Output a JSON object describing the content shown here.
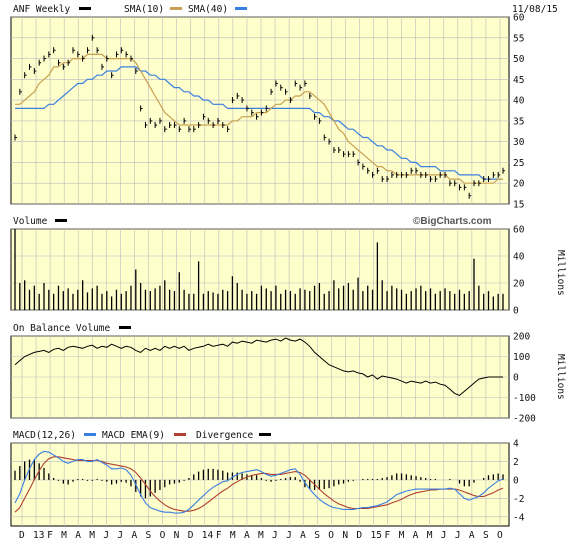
{
  "header": {
    "symbol_label": "ANF Weekly",
    "sma10_label": "SMA(10)",
    "sma40_label": "SMA(40)",
    "date": "11/08/15"
  },
  "colors": {
    "panel_bg": "#FFFFCC",
    "grid": "#BBBBBB",
    "price": "#000000",
    "sma10": "#C8A050",
    "sma40": "#3A7FE0",
    "macd": "#3A7FE0",
    "macd_ema": "#B04030",
    "divergence": "#000000",
    "volume": "#000000",
    "obv": "#000000"
  },
  "watermark": "©BigCharts.com",
  "x_ticks": [
    "D",
    "13",
    "F",
    "M",
    "A",
    "M",
    "J",
    "J",
    "A",
    "S",
    "O",
    "N",
    "D",
    "14",
    "F",
    "M",
    "A",
    "M",
    "J",
    "J",
    "A",
    "S",
    "O",
    "N",
    "D",
    "15",
    "F",
    "M",
    "A",
    "M",
    "J",
    "J",
    "A",
    "S",
    "O"
  ],
  "panels": {
    "price": {
      "y_ticks": [
        "60",
        "55",
        "50",
        "45",
        "40",
        "35",
        "30",
        "25",
        "20",
        "15"
      ]
    },
    "volume": {
      "label": "Volume",
      "unit": "Millions",
      "y_ticks": [
        "60",
        "40",
        "20",
        "0"
      ]
    },
    "obv": {
      "label": "On Balance Volume",
      "unit": "Millions",
      "y_ticks": [
        "200",
        "100",
        "0",
        "-100",
        "-200"
      ]
    },
    "macd": {
      "label": "MACD(12,26)",
      "ema_label": "MACD EMA(9)",
      "div_label": "Divergence",
      "y_ticks": [
        "4",
        "2",
        "0",
        "-2",
        "-4"
      ]
    }
  },
  "chart_data": [
    {
      "type": "line",
      "title": "ANF Weekly",
      "series": [
        {
          "name": "ANF Weekly",
          "values": [
            31,
            42,
            46,
            48,
            47,
            49,
            50,
            51,
            52,
            49,
            48,
            49,
            52,
            51,
            50,
            52,
            55,
            52,
            48,
            50,
            46,
            51,
            52,
            51,
            50,
            47,
            38,
            34,
            35,
            34,
            35,
            33,
            34,
            34,
            33,
            35,
            33,
            33,
            34,
            36,
            35,
            34,
            35,
            34,
            33,
            40,
            41,
            40,
            38,
            37,
            36,
            37,
            38,
            42,
            44,
            43,
            42,
            40,
            44,
            43,
            44,
            41,
            36,
            35,
            31,
            30,
            28,
            28,
            27,
            27,
            27,
            25,
            24,
            23,
            22,
            23,
            21,
            21,
            22,
            22,
            22,
            22,
            23,
            23,
            22,
            22,
            21,
            21,
            22,
            22,
            20,
            20,
            19,
            19,
            17,
            20,
            20,
            21,
            21,
            22,
            22,
            23
          ]
        },
        {
          "name": "SMA(10)",
          "values": [
            39,
            39,
            40,
            41,
            42,
            44,
            45,
            46,
            48,
            48,
            49,
            49,
            50,
            50,
            50,
            51,
            51,
            51,
            51,
            50,
            50,
            50,
            50,
            50,
            50,
            49,
            47,
            45,
            43,
            41,
            39,
            37,
            36,
            35,
            34,
            34,
            34,
            34,
            34,
            34,
            34,
            34,
            34,
            34,
            34,
            35,
            35,
            36,
            36,
            36,
            37,
            37,
            37,
            38,
            39,
            39,
            40,
            40,
            41,
            41,
            42,
            42,
            41,
            40,
            39,
            37,
            35,
            33,
            32,
            30,
            29,
            28,
            27,
            26,
            25,
            24,
            24,
            23,
            23,
            22,
            22,
            22,
            22,
            22,
            22,
            22,
            22,
            22,
            22,
            22,
            21,
            21,
            21,
            20,
            20,
            20,
            20,
            20,
            20,
            20,
            21,
            21
          ]
        },
        {
          "name": "SMA(40)",
          "values": [
            38,
            38,
            38,
            38,
            38,
            38,
            38,
            39,
            39,
            40,
            41,
            42,
            43,
            44,
            44,
            45,
            45,
            46,
            46,
            47,
            47,
            47,
            48,
            48,
            48,
            48,
            47,
            47,
            46,
            46,
            45,
            45,
            44,
            43,
            43,
            42,
            42,
            41,
            41,
            40,
            40,
            39,
            39,
            39,
            38,
            38,
            38,
            38,
            38,
            38,
            38,
            38,
            38,
            38,
            38,
            38,
            38,
            38,
            38,
            38,
            38,
            38,
            37,
            37,
            36,
            36,
            35,
            35,
            34,
            33,
            33,
            32,
            31,
            31,
            30,
            29,
            29,
            28,
            28,
            27,
            26,
            26,
            25,
            25,
            24,
            24,
            24,
            24,
            23,
            23,
            23,
            23,
            22,
            22,
            22,
            22,
            22,
            21,
            21,
            21,
            21,
            21
          ]
        }
      ],
      "ylim": [
        15,
        60
      ]
    },
    {
      "type": "bar",
      "title": "Volume",
      "ylabel": "Millions",
      "values": [
        60,
        20,
        22,
        15,
        18,
        12,
        20,
        15,
        12,
        18,
        14,
        16,
        12,
        15,
        22,
        13,
        16,
        18,
        12,
        14,
        10,
        15,
        12,
        14,
        18,
        30,
        20,
        15,
        14,
        16,
        18,
        22,
        15,
        14,
        28,
        15,
        12,
        12,
        36,
        12,
        14,
        13,
        12,
        15,
        14,
        25,
        20,
        15,
        12,
        14,
        12,
        18,
        16,
        14,
        18,
        12,
        15,
        14,
        12,
        16,
        15,
        14,
        18,
        20,
        12,
        14,
        22,
        16,
        18,
        20,
        15,
        24,
        14,
        18,
        15,
        50,
        22,
        14,
        18,
        16,
        15,
        12,
        14,
        16,
        18,
        14,
        16,
        12,
        14,
        16,
        14,
        12,
        15,
        12,
        14,
        38,
        18,
        12,
        14,
        10,
        12,
        12
      ],
      "ylim": [
        0,
        60
      ]
    },
    {
      "type": "line",
      "title": "On Balance Volume",
      "ylabel": "Millions",
      "values": [
        60,
        80,
        100,
        110,
        120,
        125,
        130,
        120,
        135,
        140,
        130,
        145,
        150,
        145,
        140,
        150,
        155,
        140,
        150,
        145,
        160,
        150,
        140,
        150,
        145,
        130,
        120,
        140,
        130,
        140,
        130,
        150,
        140,
        150,
        140,
        150,
        130,
        140,
        145,
        150,
        160,
        150,
        155,
        160,
        150,
        170,
        165,
        175,
        170,
        165,
        180,
        175,
        170,
        180,
        185,
        175,
        190,
        180,
        175,
        185,
        170,
        150,
        120,
        100,
        80,
        60,
        50,
        40,
        30,
        25,
        30,
        20,
        15,
        0,
        10,
        -10,
        5,
        0,
        -5,
        -10,
        -20,
        -30,
        -20,
        -25,
        -30,
        -20,
        -30,
        -25,
        -35,
        -40,
        -60,
        -80,
        -90,
        -70,
        -50,
        -30,
        -10,
        -5,
        0,
        0,
        0,
        0
      ],
      "ylim": [
        -200,
        200
      ]
    },
    {
      "type": "line",
      "title": "MACD(12,26)",
      "series": [
        {
          "name": "MACD(12,26)",
          "values": [
            -2.5,
            -1.5,
            0,
            1.2,
            2.2,
            2.8,
            3.1,
            3.0,
            2.7,
            2.4,
            2.0,
            1.8,
            2.0,
            2.2,
            2.2,
            2.0,
            2.0,
            2.2,
            1.9,
            1.6,
            1.2,
            1.2,
            1.3,
            1.1,
            0.5,
            -0.5,
            -1.6,
            -2.5,
            -3.0,
            -3.2,
            -3.4,
            -3.5,
            -3.5,
            -3.6,
            -3.6,
            -3.5,
            -3.2,
            -2.7,
            -2.2,
            -1.7,
            -1.2,
            -0.8,
            -0.5,
            -0.2,
            -0.1,
            0.3,
            0.6,
            0.8,
            0.9,
            1.0,
            1.1,
            0.9,
            0.6,
            0.4,
            0.5,
            0.7,
            0.9,
            1.1,
            1.2,
            0.6,
            -0.3,
            -1.0,
            -1.6,
            -2.1,
            -2.5,
            -2.8,
            -3.0,
            -3.1,
            -3.2,
            -3.2,
            -3.2,
            -3.1,
            -3.0,
            -3.0,
            -2.9,
            -2.8,
            -2.6,
            -2.4,
            -2.0,
            -1.6,
            -1.4,
            -1.2,
            -1.1,
            -1.0,
            -1.0,
            -1.0,
            -1.0,
            -1.0,
            -1.0,
            -1.0,
            -0.9,
            -1.0,
            -1.5,
            -2.0,
            -2.2,
            -2.0,
            -1.8,
            -1.4,
            -0.9,
            -0.5,
            -0.1,
            0.1
          ]
        },
        {
          "name": "MACD EMA(9)",
          "values": [
            -3.5,
            -3.0,
            -2.0,
            -1.0,
            0,
            1.0,
            1.8,
            2.3,
            2.5,
            2.5,
            2.4,
            2.3,
            2.2,
            2.1,
            2.1,
            2.1,
            2.1,
            2.1,
            2.0,
            1.8,
            1.7,
            1.6,
            1.5,
            1.4,
            1.2,
            0.8,
            0.2,
            -0.5,
            -1.2,
            -1.8,
            -2.3,
            -2.7,
            -3.0,
            -3.2,
            -3.3,
            -3.4,
            -3.4,
            -3.3,
            -3.1,
            -2.8,
            -2.4,
            -2.0,
            -1.6,
            -1.2,
            -0.9,
            -0.5,
            -0.2,
            0.1,
            0.3,
            0.5,
            0.6,
            0.7,
            0.7,
            0.6,
            0.6,
            0.6,
            0.7,
            0.8,
            0.9,
            0.8,
            0.5,
            0,
            -0.5,
            -1.0,
            -1.5,
            -1.9,
            -2.3,
            -2.6,
            -2.8,
            -3.0,
            -3.1,
            -3.1,
            -3.1,
            -3.1,
            -3.0,
            -2.9,
            -2.8,
            -2.7,
            -2.5,
            -2.3,
            -2.1,
            -1.8,
            -1.6,
            -1.4,
            -1.3,
            -1.2,
            -1.1,
            -1.1,
            -1.0,
            -1.0,
            -1.0,
            -1.0,
            -1.1,
            -1.3,
            -1.5,
            -1.7,
            -1.8,
            -1.8,
            -1.6,
            -1.4,
            -1.1,
            -0.9
          ]
        }
      ],
      "divergence_values": [
        1.0,
        1.5,
        2.0,
        2.2,
        2.2,
        1.8,
        1.3,
        0.7,
        0.2,
        -0.1,
        -0.4,
        -0.5,
        -0.2,
        0.1,
        0.1,
        -0.1,
        -0.1,
        0.1,
        -0.1,
        -0.2,
        -0.5,
        -0.4,
        -0.2,
        -0.3,
        -0.7,
        -1.3,
        -1.8,
        -2.0,
        -1.8,
        -1.4,
        -1.1,
        -0.8,
        -0.5,
        -0.4,
        -0.3,
        -0.1,
        0.2,
        0.6,
        0.9,
        1.1,
        1.2,
        1.2,
        1.1,
        1.0,
        0.8,
        0.8,
        0.8,
        0.7,
        0.6,
        0.5,
        0.5,
        0.2,
        -0.1,
        -0.2,
        -0.1,
        0.1,
        0.2,
        0.3,
        0.3,
        -0.2,
        -0.8,
        -1.0,
        -1.1,
        -1.1,
        -1.0,
        -0.9,
        -0.7,
        -0.5,
        -0.4,
        -0.2,
        -0.1,
        0,
        0.1,
        0.1,
        0.1,
        0.1,
        0.2,
        0.3,
        0.5,
        0.7,
        0.7,
        0.6,
        0.5,
        0.4,
        0.3,
        0.2,
        0.1,
        0.1,
        0,
        0,
        0.1,
        0,
        -0.4,
        -0.7,
        -0.7,
        -0.3,
        0,
        0.2,
        0.5,
        0.6,
        0.7,
        0.6
      ],
      "ylim": [
        -5,
        4
      ]
    }
  ]
}
